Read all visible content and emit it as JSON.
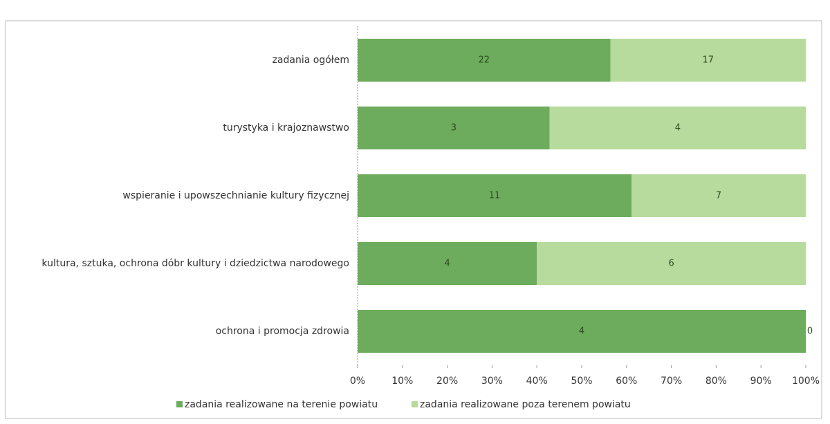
{
  "chart_data": {
    "type": "bar",
    "orientation": "horizontal",
    "stacked": "percent",
    "categories": [
      "zadania  ogółem",
      "turystyka i krajoznawstwo",
      "wspieranie i upowszechnianie kultury fizycznej",
      "kultura, sztuka, ochrona dóbr kultury i dziedzictwa narodowego",
      "ochrona i promocja zdrowia"
    ],
    "series": [
      {
        "name": "zadania realizowane na terenie powiatu",
        "color": "#6dac5c",
        "values": [
          22,
          3,
          11,
          4,
          4
        ]
      },
      {
        "name": "zadania realizowane poza terenem powiatu",
        "color": "#b7da9d",
        "values": [
          17,
          4,
          7,
          6,
          0
        ]
      }
    ],
    "xlim": [
      0,
      100
    ],
    "xticks": [
      {
        "value": 0,
        "label": "0%"
      },
      {
        "value": 10,
        "label": "10%"
      },
      {
        "value": 20,
        "label": "20%"
      },
      {
        "value": 30,
        "label": "30%"
      },
      {
        "value": 40,
        "label": "40%"
      },
      {
        "value": 50,
        "label": "50%"
      },
      {
        "value": 60,
        "label": "60%"
      },
      {
        "value": 70,
        "label": "70%"
      },
      {
        "value": 80,
        "label": "80%"
      },
      {
        "value": 90,
        "label": "90%"
      },
      {
        "value": 100,
        "label": "100%"
      }
    ],
    "legend": "bottom"
  }
}
